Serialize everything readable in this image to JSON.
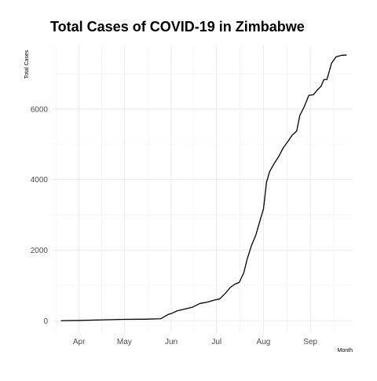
{
  "chart_data": {
    "type": "line",
    "title": "Total Cases of COVID-19 in Zimbabwe",
    "xlabel": "Month",
    "ylabel": "Total Cases",
    "xlim": [
      "2020-03-14",
      "2020-09-29"
    ],
    "ylim": [
      -350,
      7800
    ],
    "x_ticks": [
      {
        "label": "Apr",
        "date": "2020-04-01"
      },
      {
        "label": "May",
        "date": "2020-05-01"
      },
      {
        "label": "Jun",
        "date": "2020-06-01"
      },
      {
        "label": "Jul",
        "date": "2020-07-01"
      },
      {
        "label": "Aug",
        "date": "2020-08-01"
      },
      {
        "label": "Sep",
        "date": "2020-09-01"
      }
    ],
    "y_ticks": [
      0,
      2000,
      4000,
      6000
    ],
    "grid": true,
    "legend": "none",
    "line_color": "#000000",
    "series": [
      {
        "x": [
          "2020-03-20",
          "2020-04-01",
          "2020-04-15",
          "2020-05-01",
          "2020-05-15",
          "2020-05-25",
          "2020-05-30",
          "2020-06-01",
          "2020-06-05",
          "2020-06-10",
          "2020-06-15",
          "2020-06-20",
          "2020-06-25",
          "2020-06-30",
          "2020-07-03",
          "2020-07-07",
          "2020-07-10",
          "2020-07-13",
          "2020-07-16",
          "2020-07-19",
          "2020-07-21",
          "2020-07-24",
          "2020-07-27",
          "2020-07-30",
          "2020-08-01",
          "2020-08-03",
          "2020-08-05",
          "2020-08-08",
          "2020-08-11",
          "2020-08-14",
          "2020-08-17",
          "2020-08-20",
          "2020-08-23",
          "2020-08-25",
          "2020-08-28",
          "2020-08-31",
          "2020-09-03",
          "2020-09-06",
          "2020-09-08",
          "2020-09-10",
          "2020-09-12",
          "2020-09-15",
          "2020-09-18",
          "2020-09-22",
          "2020-09-25"
        ],
        "y": [
          1,
          8,
          23,
          40,
          44,
          56,
          178,
          203,
          282,
          332,
          383,
          489,
          530,
          591,
          617,
          787,
          942,
          1034,
          1089,
          1362,
          1713,
          2124,
          2434,
          2879,
          3169,
          3921,
          4221,
          4451,
          4649,
          4893,
          5072,
          5261,
          5378,
          5815,
          6070,
          6388,
          6406,
          6559,
          6638,
          6837,
          6837,
          7298,
          7479,
          7526,
          7531
        ]
      }
    ]
  }
}
